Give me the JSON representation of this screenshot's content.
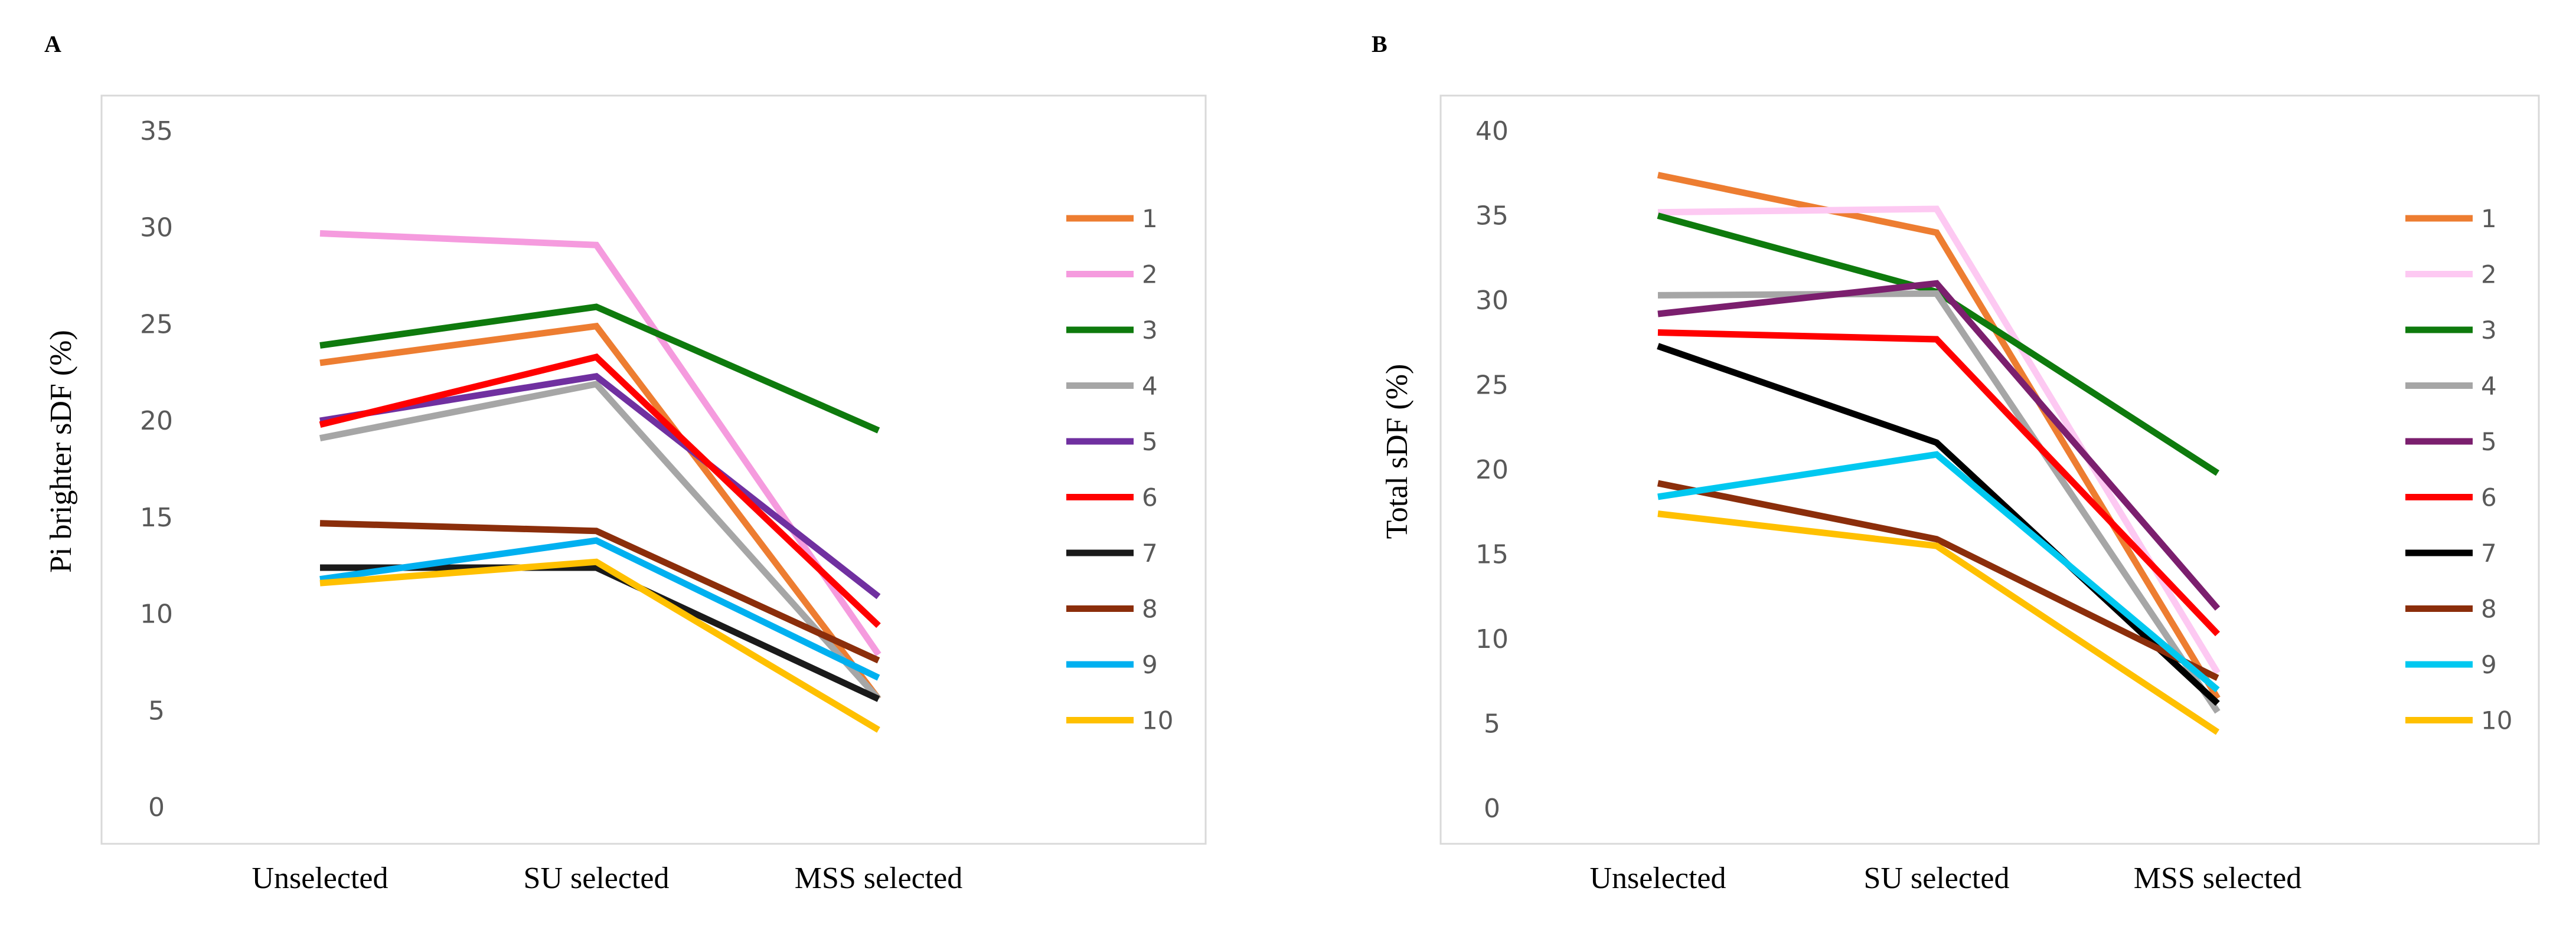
{
  "chart_data": [
    {
      "panel": "A",
      "type": "line",
      "title": "",
      "xlabel": "",
      "ylabel": "Pi brighter sDF (%)",
      "categories": [
        "Unselected",
        "SU selected",
        "MSS selected"
      ],
      "ylim": [
        0,
        35
      ],
      "yticks": [
        "0",
        "5",
        "10",
        "15",
        "20",
        "25",
        "30",
        "35"
      ],
      "grid": false,
      "legend_position": "right",
      "series": [
        {
          "name": "1",
          "color": "#ED7D31",
          "values": [
            23.0,
            24.9,
            5.6
          ]
        },
        {
          "name": "2",
          "color": "#F59BDE",
          "values": [
            29.7,
            29.1,
            7.9
          ]
        },
        {
          "name": "3",
          "color": "#0E7A0D",
          "values": [
            23.9,
            25.9,
            19.5
          ]
        },
        {
          "name": "4",
          "color": "#A6A6A6",
          "values": [
            19.1,
            21.9,
            5.6
          ]
        },
        {
          "name": "5",
          "color": "#7030A0",
          "values": [
            20.0,
            22.3,
            10.9
          ]
        },
        {
          "name": "6",
          "color": "#FF0000",
          "values": [
            19.8,
            23.3,
            9.4
          ]
        },
        {
          "name": "7",
          "color": "#1A1A1A",
          "values": [
            12.4,
            12.4,
            5.6
          ]
        },
        {
          "name": "8",
          "color": "#8B2E0B",
          "values": [
            14.7,
            14.3,
            7.6
          ]
        },
        {
          "name": "9",
          "color": "#00B0F0",
          "values": [
            11.8,
            13.8,
            6.7
          ]
        },
        {
          "name": "10",
          "color": "#FFC000",
          "values": [
            11.6,
            12.7,
            4.0
          ]
        }
      ]
    },
    {
      "panel": "B",
      "type": "line",
      "title": "",
      "xlabel": "",
      "ylabel": "Total sDF (%)",
      "categories": [
        "Unselected",
        "SU selected",
        "MSS selected"
      ],
      "ylim": [
        0,
        40
      ],
      "yticks": [
        "0",
        "5",
        "10",
        "15",
        "20",
        "25",
        "30",
        "35",
        "40"
      ],
      "grid": false,
      "legend_position": "right",
      "series": [
        {
          "name": "1",
          "color": "#ED7D31",
          "values": [
            37.4,
            34.0,
            6.5
          ]
        },
        {
          "name": "2",
          "color": "#FDC9F2",
          "values": [
            35.2,
            35.4,
            8.0
          ]
        },
        {
          "name": "3",
          "color": "#0E7A0D",
          "values": [
            35.0,
            30.5,
            19.8
          ]
        },
        {
          "name": "4",
          "color": "#A6A6A6",
          "values": [
            30.3,
            30.4,
            5.7
          ]
        },
        {
          "name": "5",
          "color": "#7B1F6E",
          "values": [
            29.2,
            31.0,
            11.8
          ]
        },
        {
          "name": "6",
          "color": "#FF0000",
          "values": [
            28.1,
            27.7,
            10.3
          ]
        },
        {
          "name": "7",
          "color": "#000000",
          "values": [
            27.3,
            21.6,
            6.2
          ]
        },
        {
          "name": "8",
          "color": "#8B2E0B",
          "values": [
            19.2,
            15.9,
            7.7
          ]
        },
        {
          "name": "9",
          "color": "#00C8F0",
          "values": [
            18.4,
            20.9,
            7.0
          ]
        },
        {
          "name": "10",
          "color": "#FFC000",
          "values": [
            17.4,
            15.5,
            4.5
          ]
        }
      ]
    }
  ]
}
